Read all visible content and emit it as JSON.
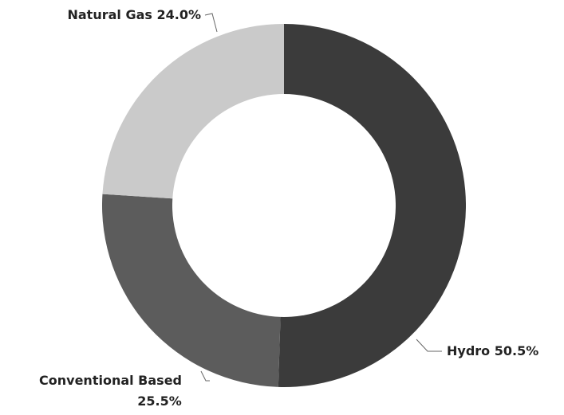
{
  "chart_data": {
    "type": "donut",
    "categories": [
      "Hydro",
      "Conventional Based",
      "Natural Gas"
    ],
    "values": [
      50.5,
      25.5,
      24.0
    ],
    "value_labels": [
      "50.5%",
      "25.5%",
      "24.0%"
    ],
    "colors": [
      "#3b3b3b",
      "#5c5c5c",
      "#cacaca"
    ]
  }
}
